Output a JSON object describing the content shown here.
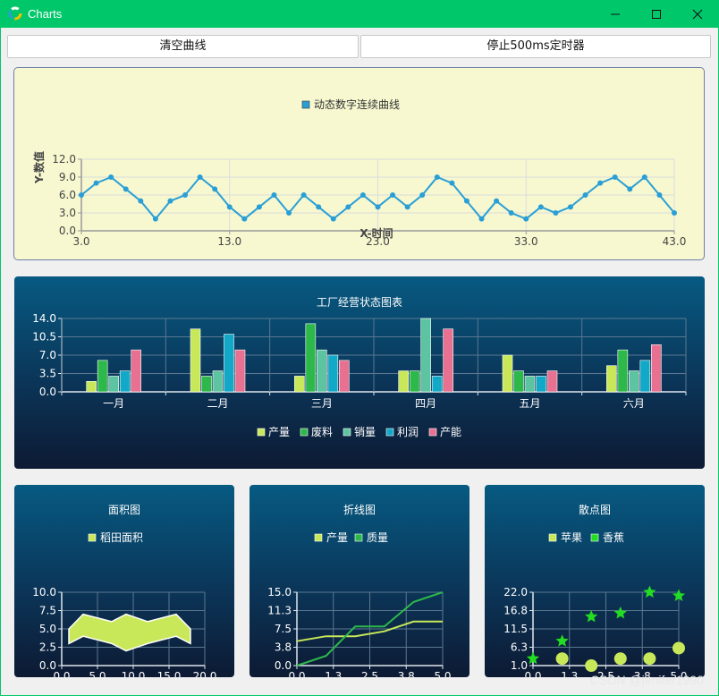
{
  "window": {
    "title": "Charts"
  },
  "buttons": {
    "clear": "清空曲线",
    "stop_timer": "停止500ms定时器"
  },
  "watermark": "CSDN @jenifer1990",
  "colors": {
    "titlebar": "#00c86a",
    "line_series": "#2a9fd6",
    "light_panel": "#f7f8d0"
  },
  "charts": {
    "line": {
      "legend": "动态数字连续曲线",
      "xlabel": "X-时间",
      "ylabel": "Y-数值",
      "yticks": [
        "12.0",
        "9.0",
        "6.0",
        "3.0",
        "0.0"
      ],
      "xticks": [
        "3.0",
        "13.0",
        "23.0",
        "33.0",
        "43.0"
      ]
    },
    "bar": {
      "title": "工厂经营状态图表",
      "yticks": [
        "14.0",
        "10.5",
        "7.0",
        "3.5",
        "0.0"
      ],
      "categories": [
        "一月",
        "二月",
        "三月",
        "四月",
        "五月",
        "六月"
      ],
      "legend": [
        "产量",
        "废料",
        "销量",
        "利润",
        "产能"
      ]
    },
    "area": {
      "title": "面积图",
      "legend": "稻田面积",
      "yticks": [
        "10.0",
        "7.5",
        "5.0",
        "2.5",
        "0.0"
      ],
      "xticks": [
        "0.0",
        "5.0",
        "10.0",
        "15.0",
        "20.0"
      ]
    },
    "polyline": {
      "title": "折线图",
      "legend": [
        "产量",
        "质量"
      ],
      "yticks": [
        "15.0",
        "11.3",
        "7.5",
        "3.8",
        "0.0"
      ],
      "xticks": [
        "0.0",
        "1.3",
        "2.5",
        "3.8",
        "5.0"
      ]
    },
    "scatter": {
      "title": "散点图",
      "legend": [
        "苹果",
        "香蕉"
      ],
      "yticks": [
        "22.0",
        "16.8",
        "11.5",
        "6.3",
        "1.0"
      ],
      "xticks": [
        "0.0",
        "1.3",
        "2.5",
        "3.8",
        "5.0"
      ]
    }
  },
  "chart_data": [
    {
      "type": "line",
      "title": "",
      "xlabel": "X-时间",
      "ylabel": "Y-数值",
      "xlim": [
        3,
        43
      ],
      "ylim": [
        0,
        12
      ],
      "grid": true,
      "legend_position": "top",
      "series": [
        {
          "name": "动态数字连续曲线",
          "x": [
            3,
            4,
            5,
            6,
            7,
            8,
            9,
            10,
            11,
            12,
            13,
            14,
            15,
            16,
            17,
            18,
            19,
            20,
            21,
            22,
            23,
            24,
            25,
            26,
            27,
            28,
            29,
            30,
            31,
            32,
            33,
            34,
            35,
            36,
            37,
            38,
            39,
            40,
            41,
            42,
            43
          ],
          "y": [
            6,
            8,
            9,
            7,
            5,
            2,
            5,
            6,
            9,
            7,
            4,
            2,
            4,
            6,
            3,
            6,
            4,
            2,
            4,
            6,
            4,
            6,
            4,
            6,
            9,
            8,
            5,
            2,
            5,
            3,
            2,
            4,
            3,
            4,
            6,
            8,
            9,
            7,
            9,
            6,
            3
          ]
        }
      ]
    },
    {
      "type": "bar",
      "title": "工厂经营状态图表",
      "categories": [
        "一月",
        "二月",
        "三月",
        "四月",
        "五月",
        "六月"
      ],
      "ylim": [
        0,
        14
      ],
      "grid": true,
      "legend_position": "bottom",
      "series": [
        {
          "name": "产量",
          "values": [
            2,
            12,
            3,
            4,
            7,
            5
          ]
        },
        {
          "name": "废料",
          "values": [
            6,
            3,
            13,
            4,
            4,
            8
          ]
        },
        {
          "name": "销量",
          "values": [
            3,
            4,
            8,
            14,
            3,
            4
          ]
        },
        {
          "name": "利润",
          "values": [
            4,
            11,
            7,
            3,
            3,
            6
          ]
        },
        {
          "name": "产能",
          "values": [
            8,
            8,
            6,
            12,
            4,
            9
          ]
        }
      ]
    },
    {
      "type": "area",
      "title": "面积图",
      "xlim": [
        0,
        20
      ],
      "ylim": [
        0,
        10
      ],
      "grid": true,
      "legend_position": "top",
      "series": [
        {
          "name": "稻田面积",
          "x": [
            1,
            3,
            7,
            9,
            12,
            16,
            18
          ],
          "upper": [
            5,
            7,
            6,
            7,
            6,
            7,
            5
          ],
          "lower": [
            3,
            4,
            3,
            2,
            3,
            4,
            3
          ]
        }
      ]
    },
    {
      "type": "line",
      "title": "折线图",
      "xlim": [
        0,
        5
      ],
      "ylim": [
        0,
        15
      ],
      "grid": true,
      "legend_position": "top",
      "series": [
        {
          "name": "产量",
          "x": [
            0,
            1,
            2,
            3,
            4,
            5
          ],
          "y": [
            5,
            6,
            6,
            7,
            9,
            9
          ]
        },
        {
          "name": "质量",
          "x": [
            0,
            1,
            2,
            3,
            4,
            5
          ],
          "y": [
            0,
            2,
            8,
            8,
            13,
            15
          ]
        }
      ]
    },
    {
      "type": "scatter",
      "title": "散点图",
      "xlim": [
        0,
        5
      ],
      "ylim": [
        1,
        22
      ],
      "grid": true,
      "legend_position": "top",
      "series": [
        {
          "name": "苹果",
          "x": [
            1,
            2,
            3,
            4,
            5
          ],
          "y": [
            3,
            1,
            3,
            3,
            6
          ]
        },
        {
          "name": "香蕉",
          "x": [
            0,
            1,
            2,
            3,
            4,
            5
          ],
          "y": [
            3,
            8,
            15,
            16,
            22,
            21
          ]
        }
      ]
    }
  ]
}
